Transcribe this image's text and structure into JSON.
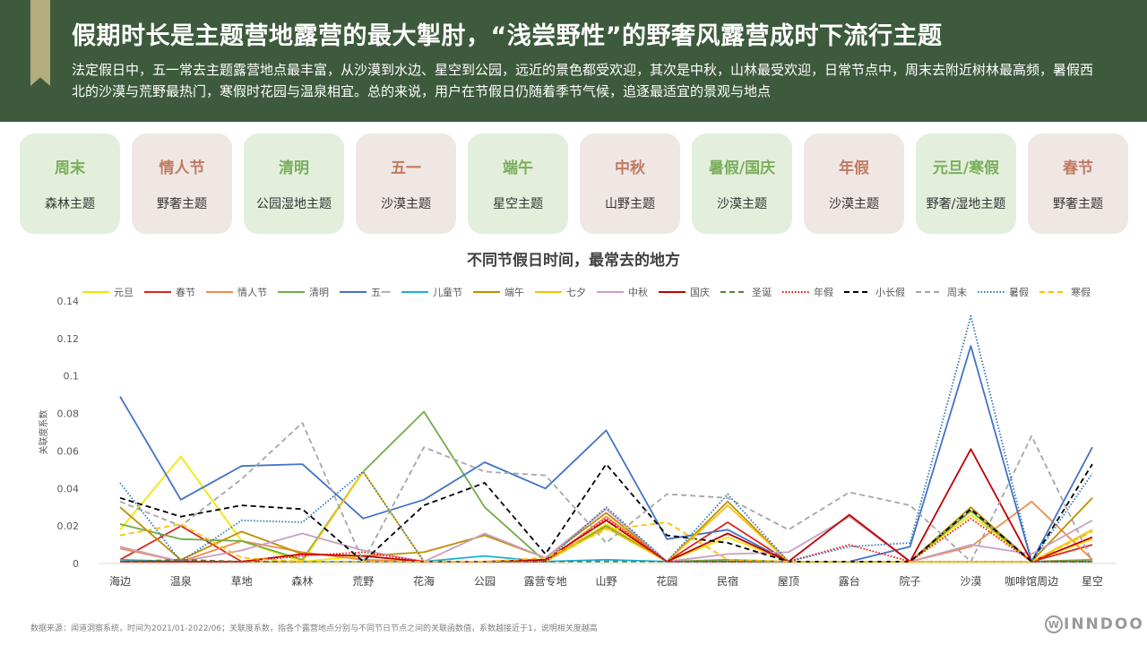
{
  "header": {
    "title": "假期时长是主题营地露营的最大掣肘，“浅尝野性”的野奢风露营成时下流行主题",
    "subtitle": "法定假日中，五一常去主题露营地点最丰富，从沙漠到水边、星空到公园，远近的景色都受欢迎，其次是中秋，山林最受欢迎，日常节点中，周末去附近树林最高频，暑假西北的沙漠与荒野最热门，寒假时花园与温泉相宜。总的来说，用户在节假日仍随着季节气候，追逐最适宜的景观与地点"
  },
  "cards": [
    {
      "name": "周末",
      "theme": "森林主题",
      "tone": "green"
    },
    {
      "name": "情人节",
      "theme": "野奢主题",
      "tone": "pink"
    },
    {
      "name": "清明",
      "theme": "公园湿地主题",
      "tone": "green"
    },
    {
      "name": "五一",
      "theme": "沙漠主题",
      "tone": "pink"
    },
    {
      "name": "端午",
      "theme": "星空主题",
      "tone": "green"
    },
    {
      "name": "中秋",
      "theme": "山野主题",
      "tone": "pink"
    },
    {
      "name": "暑假/国庆",
      "theme": "沙漠主题",
      "tone": "green"
    },
    {
      "name": "年假",
      "theme": "沙漠主题",
      "tone": "pink"
    },
    {
      "name": "元旦/寒假",
      "theme": "野奢/湿地主题",
      "tone": "green"
    },
    {
      "name": "春节",
      "theme": "野奢主题",
      "tone": "pink"
    }
  ],
  "chart_data": {
    "type": "line",
    "title": "不同节假日时间，最常去的地方",
    "ylabel": "关联度系数",
    "ylim": [
      0,
      0.14
    ],
    "yticks": [
      "0",
      "0.02",
      "0.04",
      "0.06",
      "0.08",
      "0.1",
      "0.12",
      "0.14"
    ],
    "legend_position": "top",
    "categories": [
      "海边",
      "温泉",
      "草地",
      "森林",
      "荒野",
      "花海",
      "公园",
      "露营专地",
      "山野",
      "花园",
      "民宿",
      "屋顶",
      "露台",
      "院子",
      "沙漠",
      "咖啡馆周边",
      "星空"
    ],
    "series": [
      {
        "name": "元旦",
        "color": "#f5e600",
        "dash": "solid",
        "values": [
          0.018,
          0.057,
          0.012,
          0.001,
          0.004,
          0.001,
          0.001,
          0.001,
          0.021,
          0.001,
          0.014,
          0.001,
          0.001,
          0.001,
          0.026,
          0.001,
          0.013
        ]
      },
      {
        "name": "春节",
        "color": "#e0241b",
        "dash": "solid",
        "values": [
          0.002,
          0.02,
          0.001,
          0.001,
          0.001,
          0.001,
          0.001,
          0.001,
          0.02,
          0.001,
          0.022,
          0.001,
          0.001,
          0.001,
          0.028,
          0.001,
          0.01
        ]
      },
      {
        "name": "情人节",
        "color": "#f08b4a",
        "dash": "solid",
        "values": [
          0.008,
          0.001,
          0.012,
          0.006,
          0.002,
          0.001,
          0.001,
          0.001,
          0.025,
          0.001,
          0.001,
          0.001,
          0.001,
          0.001,
          0.009,
          0.033,
          0.002
        ]
      },
      {
        "name": "清明",
        "color": "#70ad47",
        "dash": "solid",
        "values": [
          0.021,
          0.013,
          0.012,
          0.002,
          0.049,
          0.081,
          0.03,
          0.001,
          0.02,
          0.001,
          0.002,
          0.001,
          0.001,
          0.001,
          0.028,
          0.001,
          0.002
        ]
      },
      {
        "name": "五一",
        "color": "#4472c4",
        "dash": "solid",
        "values": [
          0.089,
          0.034,
          0.052,
          0.053,
          0.024,
          0.034,
          0.054,
          0.04,
          0.071,
          0.013,
          0.018,
          0.001,
          0.001,
          0.009,
          0.116,
          0.001,
          0.062
        ]
      },
      {
        "name": "儿童节",
        "color": "#1ab0d8",
        "dash": "solid",
        "values": [
          0.002,
          0.001,
          0.001,
          0.001,
          0.001,
          0.001,
          0.004,
          0.001,
          0.002,
          0.001,
          0.001,
          0.001,
          0.001,
          0.001,
          0.001,
          0.001,
          0.001
        ]
      },
      {
        "name": "端午",
        "color": "#bf8f00",
        "dash": "solid",
        "values": [
          0.03,
          0.002,
          0.017,
          0.005,
          0.004,
          0.006,
          0.015,
          0.003,
          0.027,
          0.001,
          0.033,
          0.001,
          0.001,
          0.001,
          0.03,
          0.001,
          0.035
        ]
      },
      {
        "name": "七夕",
        "color": "#ffc000",
        "dash": "solid",
        "values": [
          0.001,
          0.001,
          0.001,
          0.001,
          0.049,
          0.001,
          0.001,
          0.001,
          0.019,
          0.001,
          0.031,
          0.001,
          0.001,
          0.001,
          0.001,
          0.001,
          0.018
        ]
      },
      {
        "name": "中秋",
        "color": "#c99fc0",
        "dash": "solid",
        "values": [
          0.009,
          0.001,
          0.007,
          0.016,
          0.007,
          0.001,
          0.016,
          0.003,
          0.029,
          0.001,
          0.005,
          0.006,
          0.025,
          0.001,
          0.01,
          0.005,
          0.023
        ]
      },
      {
        "name": "国庆",
        "color": "#c00000",
        "dash": "solid",
        "values": [
          0.001,
          0.001,
          0.001,
          0.005,
          0.004,
          0.001,
          0.001,
          0.002,
          0.023,
          0.001,
          0.016,
          0.001,
          0.026,
          0.001,
          0.061,
          0.001,
          0.014
        ]
      },
      {
        "name": "圣诞",
        "color": "#548235",
        "dash": "dash",
        "values": [
          0.001,
          0.002,
          0.001,
          0.001,
          0.001,
          0.001,
          0.001,
          0.001,
          0.001,
          0.001,
          0.001,
          0.001,
          0.001,
          0.001,
          0.001,
          0.001,
          0.001
        ]
      },
      {
        "name": "年假",
        "color": "#ff0000",
        "dash": "dot",
        "values": [
          0.001,
          0.001,
          0.001,
          0.004,
          0.006,
          0.001,
          0.001,
          0.001,
          0.024,
          0.001,
          0.001,
          0.001,
          0.01,
          0.001,
          0.024,
          0.001,
          0.001
        ]
      },
      {
        "name": "小长假",
        "color": "#000000",
        "dash": "dash",
        "values": [
          0.035,
          0.025,
          0.031,
          0.029,
          0.001,
          0.031,
          0.043,
          0.005,
          0.053,
          0.015,
          0.011,
          0.001,
          0.001,
          0.001,
          0.029,
          0.001,
          0.053
        ]
      },
      {
        "name": "周末",
        "color": "#a6a6a6",
        "dash": "dash",
        "values": [
          0.033,
          0.02,
          0.045,
          0.075,
          0.001,
          0.062,
          0.049,
          0.047,
          0.011,
          0.037,
          0.035,
          0.018,
          0.038,
          0.031,
          0.001,
          0.068,
          0.001
        ]
      },
      {
        "name": "暑假",
        "color": "#2e75b6",
        "dash": "dot",
        "values": [
          0.043,
          0.001,
          0.023,
          0.022,
          0.049,
          0.001,
          0.001,
          0.001,
          0.03,
          0.001,
          0.037,
          0.001,
          0.009,
          0.011,
          0.132,
          0.001,
          0.048
        ]
      },
      {
        "name": "寒假",
        "color": "#ffc000",
        "dash": "dash",
        "values": [
          0.015,
          0.021,
          0.003,
          0.001,
          0.001,
          0.001,
          0.001,
          0.003,
          0.018,
          0.022,
          0.002,
          0.001,
          0.001,
          0.001,
          0.001,
          0.001,
          0.017
        ]
      }
    ]
  },
  "footnote": "数据来源：闻道洞察系统，时间为2021/01-2022/06；关联度系数，指各个露营地点分别与不同节日节点之间的关联函数值，系数越接近于1，说明相关度越高",
  "logo": {
    "mark": "W",
    "text": "INNDOO"
  }
}
